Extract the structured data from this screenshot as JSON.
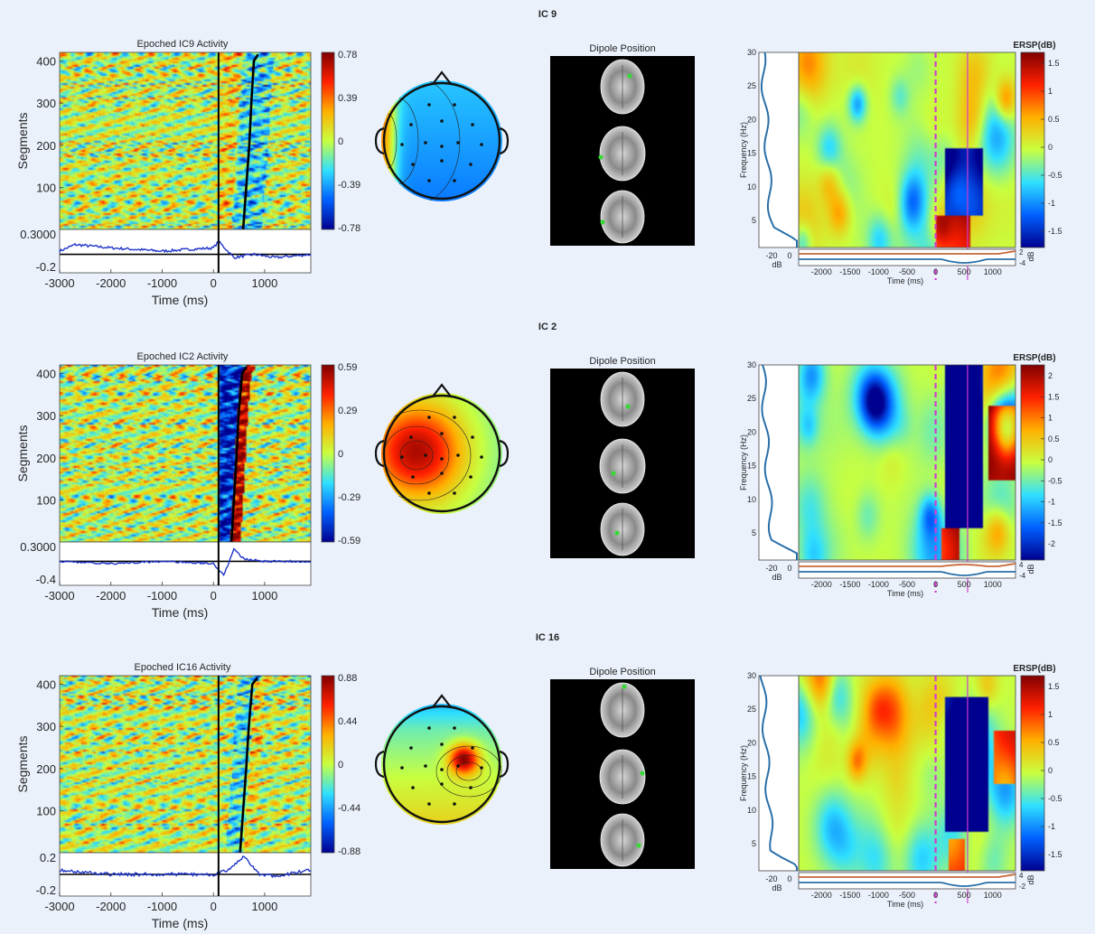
{
  "colors": {
    "background": "#eaf1fb",
    "erp_trace": "#1f35c8",
    "rt_curve": "#000000",
    "baseline_spectrum": "#2a6fa8",
    "ersp_upper": "#c8683a",
    "ersp_lower": "#2a6fa8",
    "event_line": "#d03cd0",
    "dipole_marker": "#38d838",
    "colormap": [
      "#00008f",
      "#0060ff",
      "#30e0ff",
      "#c8ff40",
      "#ffb000",
      "#ff2000",
      "#800000"
    ]
  },
  "panels": [
    {
      "ic_label": "IC 9",
      "erpimage": {
        "title": "Epoched IC9 Activity",
        "ylabel": "Segments",
        "yticks": [
          "400",
          "300",
          "200",
          "100"
        ],
        "cbar_ticks": [
          "0.78",
          "0.39",
          "0",
          "-0.39",
          "-0.78"
        ],
        "erp_ytop": "0.3000",
        "erp_ybottom": "-0.2",
        "xticks": [
          "-3000",
          "-2000",
          "-1000",
          "0",
          "1000"
        ],
        "xlabel": "Time (ms)"
      },
      "scalp_map": {
        "polarity": "negative"
      },
      "dipole": {
        "title": "Dipole Position"
      },
      "ersp": {
        "cbar_title": "ERSP(dB)",
        "cbar_ticks": [
          "1.5",
          "1",
          "0.5",
          "0",
          "-0.5",
          "-1",
          "-1.5"
        ],
        "ylabel": "Frequency (Hz)",
        "yticks": [
          "30",
          "25",
          "20",
          "15",
          "10",
          "5"
        ],
        "xticks": [
          "-2000",
          "-1500",
          "-1000",
          "-500",
          "0",
          "500",
          "1000"
        ],
        "xlabel": "Time (ms)",
        "spec_ticks": [
          "-20",
          "0"
        ],
        "spec_unit": "dB",
        "env_ticks": [
          "2",
          "-4"
        ],
        "env_unit": "dB"
      }
    },
    {
      "ic_label": "IC 2",
      "erpimage": {
        "title": "Epoched IC2 Activity",
        "ylabel": "Segments",
        "yticks": [
          "400",
          "300",
          "200",
          "100"
        ],
        "cbar_ticks": [
          "0.59",
          "0.29",
          "0",
          "-0.29",
          "-0.59"
        ],
        "erp_ytop": "0.3000",
        "erp_ybottom": "-0.4",
        "xticks": [
          "-3000",
          "-2000",
          "-1000",
          "0",
          "1000"
        ],
        "xlabel": "Time (ms)"
      },
      "scalp_map": {
        "polarity": "positive"
      },
      "dipole": {
        "title": "Dipole Position"
      },
      "ersp": {
        "cbar_title": "ERSP(dB)",
        "cbar_ticks": [
          "2",
          "1.5",
          "1",
          "0.5",
          "0",
          "-0.5",
          "-1",
          "-1.5",
          "-2"
        ],
        "ylabel": "Frequency (Hz)",
        "yticks": [
          "30",
          "25",
          "20",
          "15",
          "10",
          "5"
        ],
        "xticks": [
          "-2000",
          "-1500",
          "-1000",
          "-500",
          "0",
          "500",
          "1000"
        ],
        "xlabel": "Time (ms)",
        "spec_ticks": [
          "-20",
          "0"
        ],
        "spec_unit": "dB",
        "env_ticks": [
          "4",
          "-4"
        ],
        "env_unit": "dB"
      }
    },
    {
      "ic_label": "IC 16",
      "erpimage": {
        "title": "Epoched IC16 Activity",
        "ylabel": "Segments",
        "yticks": [
          "400",
          "300",
          "200",
          "100"
        ],
        "cbar_ticks": [
          "0.88",
          "0.44",
          "0",
          "-0.44",
          "-0.88"
        ],
        "erp_ytop": "0.2",
        "erp_ybottom": "-0.2",
        "xticks": [
          "-3000",
          "-2000",
          "-1000",
          "0",
          "1000"
        ],
        "xlabel": "Time (ms)"
      },
      "scalp_map": {
        "polarity": "focal"
      },
      "dipole": {
        "title": "Dipole Position"
      },
      "ersp": {
        "cbar_title": "ERSP(dB)",
        "cbar_ticks": [
          "1.5",
          "1",
          "0.5",
          "0",
          "-0.5",
          "-1",
          "-1.5"
        ],
        "ylabel": "Frequency (Hz)",
        "yticks": [
          "30",
          "25",
          "20",
          "15",
          "10",
          "5"
        ],
        "xticks": [
          "-2000",
          "-1500",
          "-1000",
          "-500",
          "0",
          "500",
          "1000"
        ],
        "xlabel": "Time (ms)",
        "spec_ticks": [
          "-20",
          "0"
        ],
        "spec_unit": "dB",
        "env_ticks": [
          "4",
          "-2"
        ],
        "env_unit": "dB"
      }
    }
  ],
  "chart_data": [
    {
      "type": "heatmap",
      "component": "IC 9",
      "title": "Epoched IC9 Activity",
      "xlabel": "Time (ms)",
      "ylabel": "Segments",
      "xlim": [
        -3000,
        1900
      ],
      "ylim": [
        1,
        420
      ],
      "color_range": [
        -0.78,
        0.78
      ],
      "event_time_ms": 100,
      "rt_sorted_curve": {
        "segments": [
          0,
          100,
          200,
          300,
          400,
          415
        ],
        "time_ms": [
          580,
          640,
          700,
          740,
          790,
          870
        ]
      },
      "erp": {
        "time_ms": [
          -3000,
          -2700,
          -2000,
          -1000,
          0,
          100,
          400,
          800,
          1200,
          1900
        ],
        "value": [
          0.05,
          0.15,
          0.1,
          0.05,
          0.1,
          0.2,
          -0.05,
          0.0,
          -0.05,
          0.0
        ]
      }
    },
    {
      "type": "heatmap",
      "component": "IC 9",
      "title": "ERSP(dB)",
      "xlabel": "Time (ms)",
      "ylabel": "Frequency (Hz)",
      "xlim": [
        -2400,
        1400
      ],
      "ylim": [
        1,
        30
      ],
      "color_range": [
        -1.8,
        1.8
      ],
      "event_time_ms": 0,
      "secondary_event_ms": 560
    },
    {
      "type": "heatmap",
      "component": "IC 2",
      "title": "Epoched IC2 Activity",
      "xlabel": "Time (ms)",
      "ylabel": "Segments",
      "xlim": [
        -3000,
        1900
      ],
      "ylim": [
        1,
        420
      ],
      "color_range": [
        -0.59,
        0.59
      ],
      "event_time_ms": 100,
      "rt_sorted_curve": {
        "segments": [
          0,
          100,
          200,
          300,
          400,
          415
        ],
        "time_ms": [
          350,
          400,
          450,
          490,
          560,
          650
        ]
      },
      "erp": {
        "time_ms": [
          -3000,
          -2000,
          -1000,
          0,
          200,
          400,
          600,
          1000,
          1900
        ],
        "value": [
          0.0,
          -0.05,
          0.0,
          -0.05,
          -0.3,
          0.25,
          0.05,
          0.0,
          0.0
        ]
      }
    },
    {
      "type": "heatmap",
      "component": "IC 2",
      "title": "ERSP(dB)",
      "xlabel": "Time (ms)",
      "ylabel": "Frequency (Hz)",
      "xlim": [
        -2400,
        1400
      ],
      "ylim": [
        1,
        30
      ],
      "color_range": [
        -2.1,
        2.1
      ],
      "event_time_ms": 0,
      "secondary_event_ms": 560
    },
    {
      "type": "heatmap",
      "component": "IC 16",
      "title": "Epoched IC16 Activity",
      "xlabel": "Time (ms)",
      "ylabel": "Segments",
      "xlim": [
        -3000,
        1900
      ],
      "ylim": [
        1,
        420
      ],
      "color_range": [
        -0.88,
        0.88
      ],
      "event_time_ms": 100,
      "rt_sorted_curve": {
        "segments": [
          0,
          100,
          200,
          300,
          400,
          415
        ],
        "time_ms": [
          520,
          580,
          640,
          690,
          760,
          860
        ]
      },
      "erp": {
        "time_ms": [
          -3000,
          -2000,
          -1000,
          0,
          300,
          600,
          900,
          1200,
          1900
        ],
        "value": [
          0.05,
          0.0,
          0.0,
          0.0,
          0.05,
          0.22,
          0.0,
          -0.02,
          0.05
        ]
      }
    },
    {
      "type": "heatmap",
      "component": "IC 16",
      "title": "ERSP(dB)",
      "xlabel": "Time (ms)",
      "ylabel": "Frequency (Hz)",
      "xlim": [
        -2400,
        1400
      ],
      "ylim": [
        1,
        30
      ],
      "color_range": [
        -1.6,
        1.6
      ],
      "event_time_ms": 0,
      "secondary_event_ms": 560
    }
  ]
}
